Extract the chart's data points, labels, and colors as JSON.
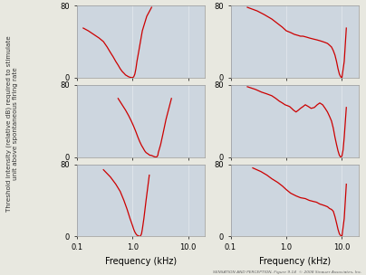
{
  "background_color": "#cdd6df",
  "line_color": "#cc0000",
  "fig_bg": "#e8e8e0",
  "ylim": [
    0,
    80
  ],
  "xlim": [
    0.1,
    20
  ],
  "yticks": [
    0,
    80
  ],
  "xticks": [
    0.1,
    1.0,
    10.0
  ],
  "xticklabels": [
    "0.1",
    "1.0",
    "10.0"
  ],
  "ylabel": "Threshold intensity (relative dB) required to stimulate\nunit above spontaneous firing rate",
  "xlabel_bottom": "Frequency (kHz)",
  "caption": "SENSATION AND PERCEPTION, Figure 9.14  © 2008 Sinauer Associates, Inc.",
  "curves": [
    {
      "name": "top_left",
      "x": [
        0.13,
        0.16,
        0.2,
        0.25,
        0.3,
        0.35,
        0.4,
        0.45,
        0.5,
        0.55,
        0.6,
        0.65,
        0.7,
        0.75,
        0.8,
        0.85,
        0.9,
        0.95,
        1.0,
        1.05,
        1.1,
        1.15,
        1.2,
        1.3,
        1.5,
        1.8,
        2.2
      ],
      "y": [
        55,
        52,
        48,
        44,
        40,
        34,
        28,
        23,
        18,
        14,
        10,
        7,
        5,
        3,
        2,
        1,
        0.5,
        0.2,
        0,
        1,
        4,
        10,
        18,
        30,
        52,
        68,
        78
      ]
    },
    {
      "name": "mid_left",
      "x": [
        0.55,
        0.65,
        0.75,
        0.85,
        0.95,
        1.05,
        1.15,
        1.25,
        1.35,
        1.45,
        1.55,
        1.65,
        1.75,
        1.85,
        1.95,
        2.05,
        2.15,
        2.25,
        2.35,
        2.45,
        2.55,
        2.65,
        2.75,
        2.85,
        2.9,
        3.0,
        3.2,
        3.5,
        4.0,
        5.0
      ],
      "y": [
        65,
        58,
        52,
        46,
        40,
        34,
        28,
        22,
        17,
        13,
        10,
        7,
        5,
        4,
        3,
        2,
        2,
        1.5,
        1,
        0.5,
        0.2,
        0,
        0.5,
        2,
        5,
        8,
        14,
        25,
        42,
        65
      ]
    },
    {
      "name": "bot_left",
      "x": [
        0.3,
        0.4,
        0.5,
        0.6,
        0.7,
        0.8,
        0.9,
        1.0,
        1.05,
        1.1,
        1.15,
        1.2,
        1.25,
        1.3,
        1.35,
        1.4,
        1.45,
        1.5,
        1.6,
        1.75,
        2.0
      ],
      "y": [
        74,
        66,
        58,
        50,
        40,
        30,
        20,
        12,
        8,
        5,
        3,
        1.5,
        1,
        0.5,
        0,
        1,
        3,
        8,
        20,
        40,
        68
      ]
    },
    {
      "name": "top_right",
      "x": [
        0.2,
        0.3,
        0.4,
        0.55,
        0.7,
        0.85,
        1.0,
        1.2,
        1.4,
        1.6,
        1.8,
        2.0,
        2.3,
        2.6,
        3.0,
        3.5,
        4.0,
        4.5,
        5.0,
        5.5,
        6.0,
        6.5,
        7.0,
        7.5,
        8.0,
        8.5,
        9.0,
        9.5,
        10.0,
        11.0,
        12.0
      ],
      "y": [
        78,
        74,
        70,
        65,
        60,
        56,
        52,
        50,
        48,
        47,
        46,
        46,
        45,
        44,
        43,
        42,
        41,
        40,
        39,
        38,
        36,
        34,
        30,
        25,
        18,
        10,
        4,
        1,
        0,
        18,
        55
      ]
    },
    {
      "name": "mid_right",
      "x": [
        0.2,
        0.28,
        0.36,
        0.45,
        0.55,
        0.65,
        0.75,
        0.85,
        0.95,
        1.05,
        1.15,
        1.25,
        1.35,
        1.5,
        1.65,
        1.8,
        2.0,
        2.2,
        2.5,
        2.8,
        3.2,
        3.6,
        4.0,
        4.5,
        5.0,
        5.5,
        6.0,
        6.5,
        7.0,
        7.5,
        8.0,
        8.5,
        9.0,
        9.5,
        10.0,
        10.5,
        11.0,
        12.0
      ],
      "y": [
        78,
        75,
        72,
        70,
        68,
        65,
        62,
        60,
        58,
        57,
        56,
        54,
        52,
        50,
        52,
        54,
        56,
        58,
        56,
        54,
        55,
        58,
        60,
        58,
        54,
        50,
        45,
        40,
        32,
        22,
        14,
        7,
        2,
        0,
        1,
        8,
        22,
        55
      ]
    },
    {
      "name": "bot_right",
      "x": [
        0.25,
        0.35,
        0.45,
        0.55,
        0.7,
        0.85,
        1.0,
        1.2,
        1.5,
        1.8,
        2.2,
        2.6,
        3.0,
        3.5,
        4.0,
        4.5,
        5.0,
        5.5,
        6.0,
        6.5,
        7.0,
        7.5,
        8.0,
        8.5,
        9.0,
        9.5,
        10.0,
        11.0,
        12.0
      ],
      "y": [
        76,
        72,
        68,
        64,
        60,
        56,
        52,
        48,
        45,
        43,
        42,
        40,
        39,
        38,
        36,
        35,
        34,
        33,
        31,
        30,
        28,
        22,
        15,
        8,
        3,
        1,
        0,
        20,
        58
      ]
    }
  ]
}
